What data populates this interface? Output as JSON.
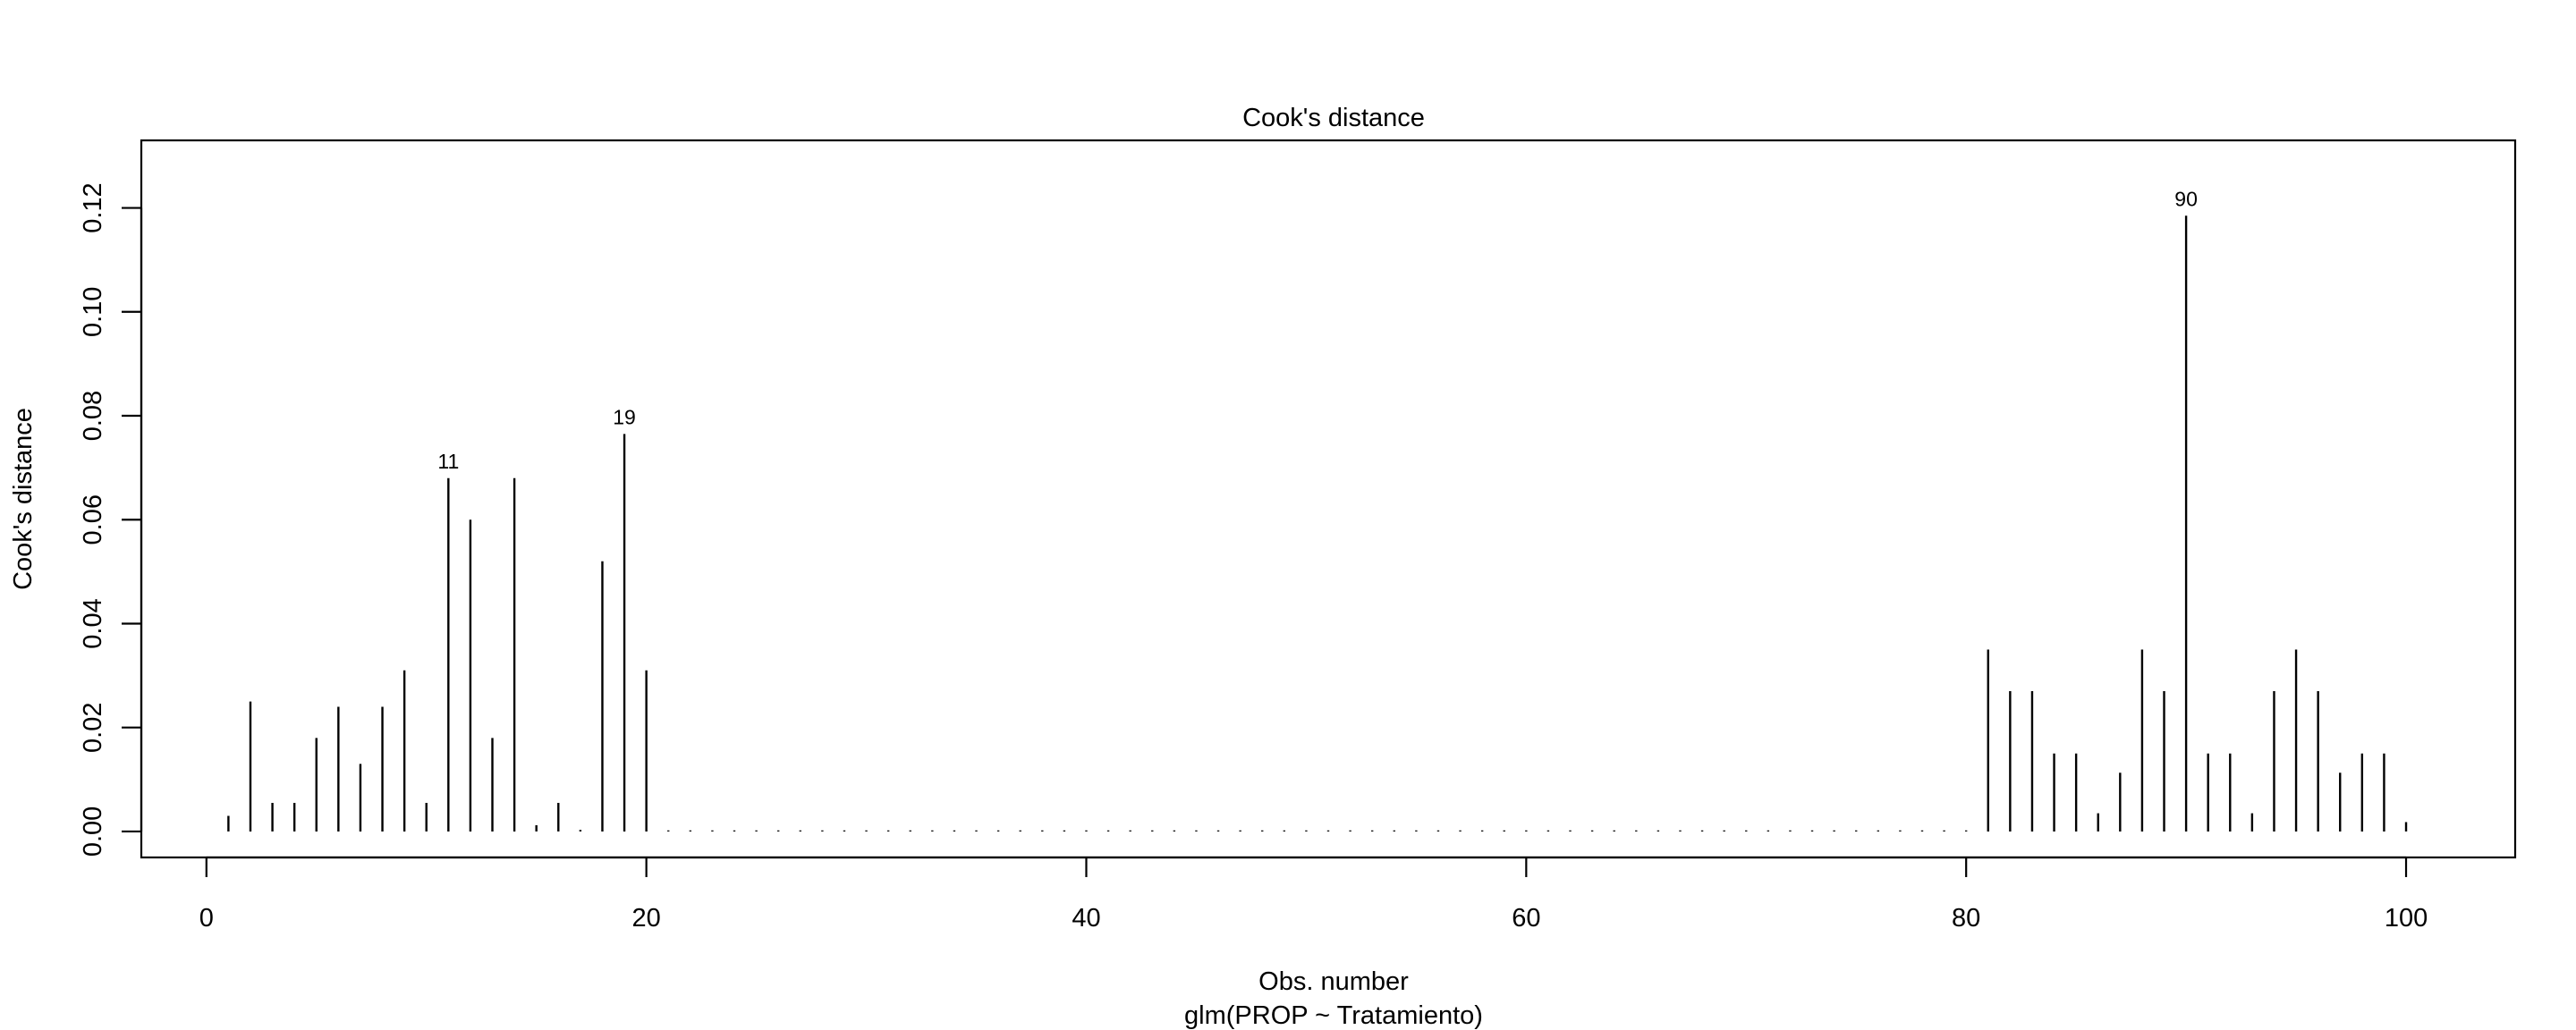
{
  "chart_data": {
    "type": "bar",
    "style": "vertical lines (R type='h')",
    "title": "Cook's distance",
    "xlabel": "Obs. number",
    "subtitle": "glm(PROP ~ Tratamiento)",
    "ylabel": "Cook's distance",
    "xlim": [
      -2.96,
      104.96
    ],
    "ylim": [
      -0.005,
      0.133
    ],
    "x_ticks": [
      0,
      20,
      40,
      60,
      80,
      100
    ],
    "y_ticks": [
      0.0,
      0.02,
      0.04,
      0.06,
      0.08,
      0.1,
      0.12
    ],
    "x_tick_labels": [
      "0",
      "20",
      "40",
      "60",
      "80",
      "100"
    ],
    "y_tick_labels": [
      "0.00",
      "0.02",
      "0.04",
      "0.06",
      "0.08",
      "0.10",
      "0.12"
    ],
    "grid": false,
    "color": "#000000",
    "x": [
      1,
      2,
      3,
      4,
      5,
      6,
      7,
      8,
      9,
      10,
      11,
      12,
      13,
      14,
      15,
      16,
      17,
      18,
      19,
      20,
      21,
      22,
      23,
      24,
      25,
      26,
      27,
      28,
      29,
      30,
      31,
      32,
      33,
      34,
      35,
      36,
      37,
      38,
      39,
      40,
      41,
      42,
      43,
      44,
      45,
      46,
      47,
      48,
      49,
      50,
      51,
      52,
      53,
      54,
      55,
      56,
      57,
      58,
      59,
      60,
      61,
      62,
      63,
      64,
      65,
      66,
      67,
      68,
      69,
      70,
      71,
      72,
      73,
      74,
      75,
      76,
      77,
      78,
      79,
      80,
      81,
      82,
      83,
      84,
      85,
      86,
      87,
      88,
      89,
      90,
      91,
      92,
      93,
      94,
      95,
      96,
      97,
      98,
      99,
      100
    ],
    "values": [
      0.003,
      0.025,
      0.0055,
      0.0055,
      0.018,
      0.024,
      0.013,
      0.024,
      0.031,
      0.0055,
      0.068,
      0.06,
      0.018,
      0.068,
      0.0012,
      0.0055,
      0.0003,
      0.052,
      0.0765,
      0.031,
      0,
      0,
      0,
      0,
      0,
      0,
      0,
      0,
      0,
      0,
      0,
      0,
      0,
      0,
      0,
      0,
      0,
      0,
      0,
      0,
      0,
      0,
      0,
      0,
      0,
      0,
      0,
      0,
      0,
      0,
      0,
      0,
      0,
      0,
      0,
      0,
      0,
      0,
      0,
      0,
      0,
      0,
      0,
      0,
      0,
      0,
      0,
      0,
      0,
      0,
      0,
      0,
      0,
      0,
      0,
      0,
      0,
      0,
      0,
      0,
      0.035,
      0.027,
      0.027,
      0.015,
      0.015,
      0.0035,
      0.0113,
      0.035,
      0.027,
      0.1185,
      0.015,
      0.015,
      0.0035,
      0.027,
      0.035,
      0.027,
      0.0113,
      0.015,
      0.015,
      0.0018
    ],
    "annotations": [
      {
        "x": 11,
        "value": 0.068,
        "label": "11"
      },
      {
        "x": 19,
        "value": 0.0765,
        "label": "19"
      },
      {
        "x": 90,
        "value": 0.1185,
        "label": "90"
      }
    ]
  }
}
